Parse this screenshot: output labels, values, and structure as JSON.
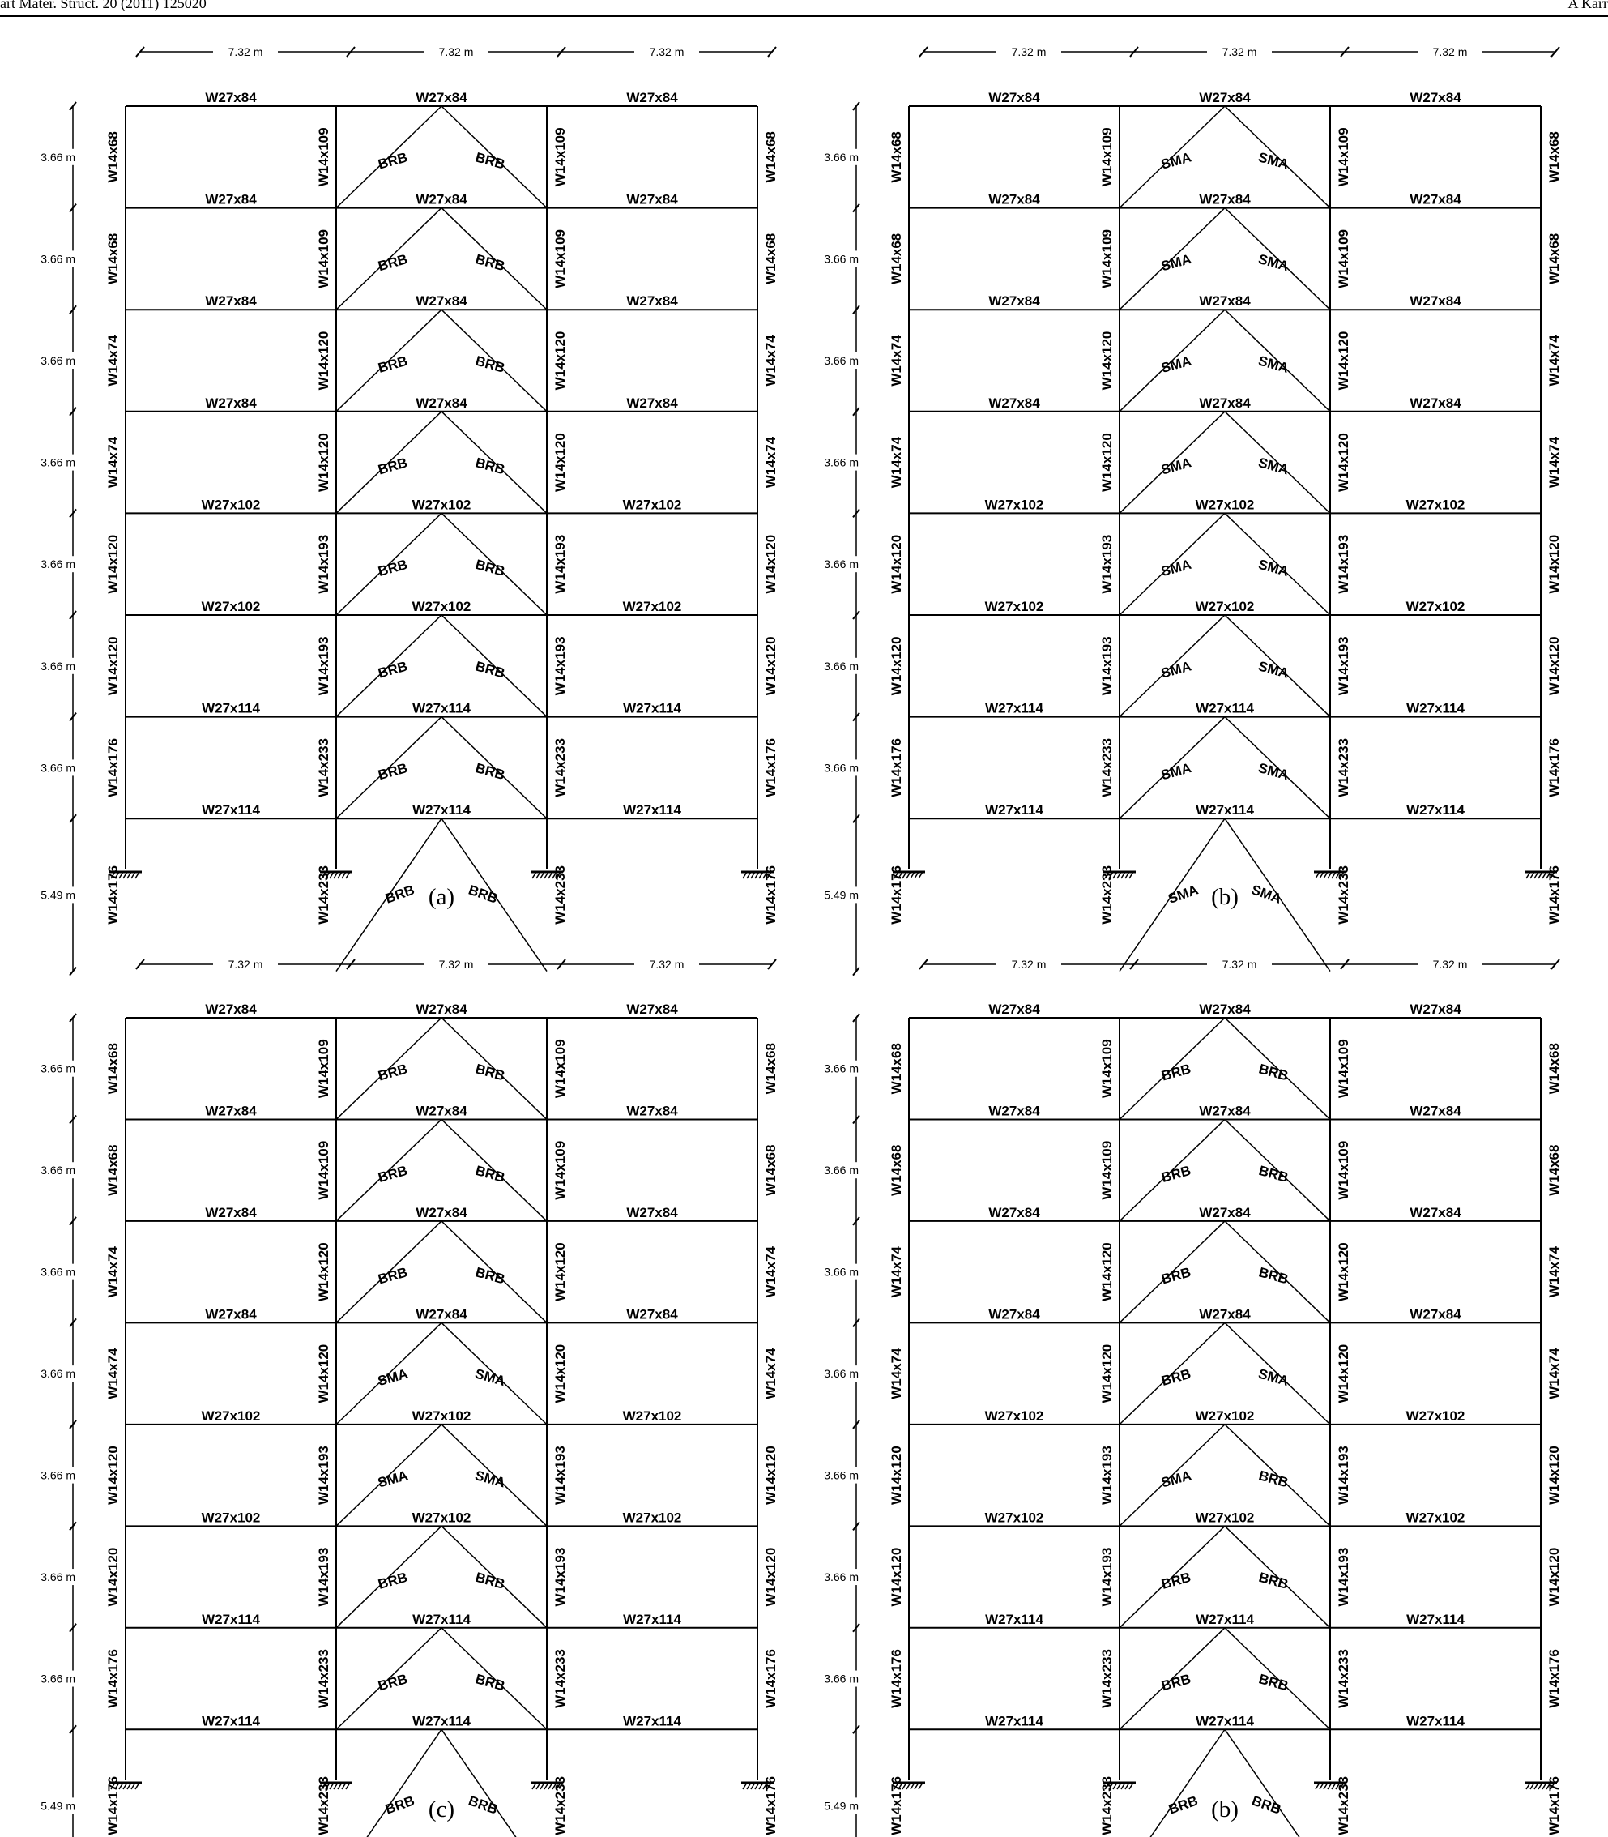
{
  "header": {
    "journal_left": "art Mater. Struct. 20 (2011) 125020",
    "author_right": "A Karr"
  },
  "common": {
    "span_label": "7.32 m",
    "story_heights": [
      "3.66 m",
      "3.66 m",
      "3.66 m",
      "3.66 m",
      "3.66 m",
      "3.66 m",
      "3.66 m",
      "5.49 m"
    ],
    "beam_sections": [
      "W27x84",
      "W27x84",
      "W27x84",
      "W27x84",
      "W27x102",
      "W27x102",
      "W27x114",
      "W27x114"
    ],
    "exterior_columns": [
      "W14x68",
      "W14x68",
      "W14x74",
      "W14x74",
      "W14x120",
      "W14x120",
      "W14x176",
      "W14x176"
    ],
    "interior_columns": [
      "W14x109",
      "W14x109",
      "W14x120",
      "W14x120",
      "W14x193",
      "W14x193",
      "W14x233",
      "W14x233"
    ]
  },
  "frames": [
    {
      "caption": "(a)",
      "braces": [
        [
          "BRB",
          "BRB"
        ],
        [
          "BRB",
          "BRB"
        ],
        [
          "BRB",
          "BRB"
        ],
        [
          "BRB",
          "BRB"
        ],
        [
          "BRB",
          "BRB"
        ],
        [
          "BRB",
          "BRB"
        ],
        [
          "BRB",
          "BRB"
        ],
        [
          "BRB",
          "BRB"
        ]
      ]
    },
    {
      "caption": "(b)",
      "braces": [
        [
          "SMA",
          "SMA"
        ],
        [
          "SMA",
          "SMA"
        ],
        [
          "SMA",
          "SMA"
        ],
        [
          "SMA",
          "SMA"
        ],
        [
          "SMA",
          "SMA"
        ],
        [
          "SMA",
          "SMA"
        ],
        [
          "SMA",
          "SMA"
        ],
        [
          "SMA",
          "SMA"
        ]
      ]
    },
    {
      "caption": "(c)",
      "braces": [
        [
          "BRB",
          "BRB"
        ],
        [
          "BRB",
          "BRB"
        ],
        [
          "BRB",
          "BRB"
        ],
        [
          "SMA",
          "SMA"
        ],
        [
          "SMA",
          "SMA"
        ],
        [
          "BRB",
          "BRB"
        ],
        [
          "BRB",
          "BRB"
        ],
        [
          "BRB",
          "BRB"
        ]
      ]
    },
    {
      "caption": "(b)",
      "braces": [
        [
          "BRB",
          "BRB"
        ],
        [
          "BRB",
          "BRB"
        ],
        [
          "BRB",
          "BRB"
        ],
        [
          "BRB",
          "SMA"
        ],
        [
          "SMA",
          "BRB"
        ],
        [
          "BRB",
          "BRB"
        ],
        [
          "BRB",
          "BRB"
        ],
        [
          "BRB",
          "BRB"
        ]
      ]
    }
  ]
}
